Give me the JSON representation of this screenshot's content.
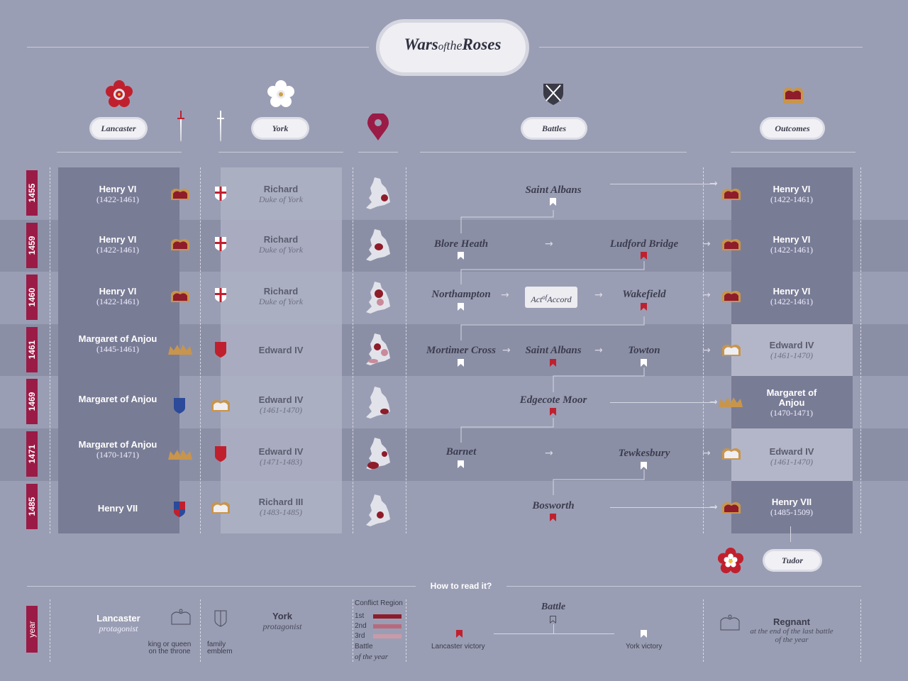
{
  "title": {
    "w": "Wars",
    "of": "of",
    "the": "the",
    "r": "Roses"
  },
  "headers": {
    "lancaster": "Lancaster",
    "york": "York",
    "battles": "Battles",
    "outcomes": "Outcomes"
  },
  "rows": [
    {
      "year": "1455",
      "lanc_name": "Henry VI",
      "lanc_dates": "(1422-1461)",
      "york_name": "Richard",
      "york_sub": "Duke of York",
      "out_name": "Henry VI",
      "out_dates": "(1422-1461)"
    },
    {
      "year": "1459",
      "lanc_name": "Henry VI",
      "lanc_dates": "(1422-1461)",
      "york_name": "Richard",
      "york_sub": "Duke of York",
      "out_name": "Henry VI",
      "out_dates": "(1422-1461)"
    },
    {
      "year": "1460",
      "lanc_name": "Henry VI",
      "lanc_dates": "(1422-1461)",
      "york_name": "Richard",
      "york_sub": "Duke of York",
      "out_name": "Henry VI",
      "out_dates": "(1422-1461)"
    },
    {
      "year": "1461",
      "lanc_name": "Margaret of Anjou",
      "lanc_dates": "(1445-1461)",
      "york_name": "Edward IV",
      "york_sub": "",
      "out_name": "Edward IV",
      "out_dates": "(1461-1470)"
    },
    {
      "year": "1469",
      "lanc_name": "Margaret of Anjou",
      "lanc_dates": "",
      "york_name": "Edward IV",
      "york_sub": "(1461-1470)",
      "out_name": "Margaret of Anjou",
      "out_dates": "(1470-1471)"
    },
    {
      "year": "1471",
      "lanc_name": "Margaret of Anjou",
      "lanc_dates": "(1470-1471)",
      "york_name": "Edward IV",
      "york_sub": "(1471-1483)",
      "out_name": "Edward IV",
      "out_dates": "(1461-1470)"
    },
    {
      "year": "1485",
      "lanc_name": "Henry VII",
      "lanc_dates": "",
      "york_name": "Richard III",
      "york_sub": "(1483-1485)",
      "out_name": "Henry VII",
      "out_dates": "(1485-1509)"
    }
  ],
  "battles": {
    "b1455": "Saint Albans",
    "b1459a": "Blore Heath",
    "b1459b": "Ludford Bridge",
    "b1460a": "Northampton",
    "b1460b": "Wakefield",
    "accord_a": "Act",
    "accord_b": "of",
    "accord_c": "Accord",
    "b1461a": "Mortimer Cross",
    "b1461b": "Saint Albans",
    "b1461c": "Towton",
    "b1469": "Edgecote Moor",
    "b1471a": "Barnet",
    "b1471b": "Tewkesbury",
    "b1485": "Bosworth"
  },
  "tudor": "Tudor",
  "legend": {
    "how": "How to read it?",
    "year": "year",
    "lancaster": "Lancaster",
    "lancaster_sub": "protagonist",
    "king": "king or queen",
    "king2": "on the throne",
    "family": "family",
    "family2": "emblem",
    "york": "York",
    "york_sub": "protagonist",
    "conflict": "Conflict Region",
    "first": "1st",
    "second": "2nd",
    "third": "3rd",
    "battle_label": "Battle",
    "battle_year": "of the year",
    "battle": "Battle",
    "lanc_victory": "Lancaster victory",
    "york_victory": "York victory",
    "regnant": "Regnant",
    "regnant_sub1": "at the end of the last battle",
    "regnant_sub2": "of the year"
  },
  "colors": {
    "background": "#9a9eb4",
    "lancaster_red": "#c0202e",
    "year_bar": "#9b1b47",
    "gold": "#c8954c"
  }
}
